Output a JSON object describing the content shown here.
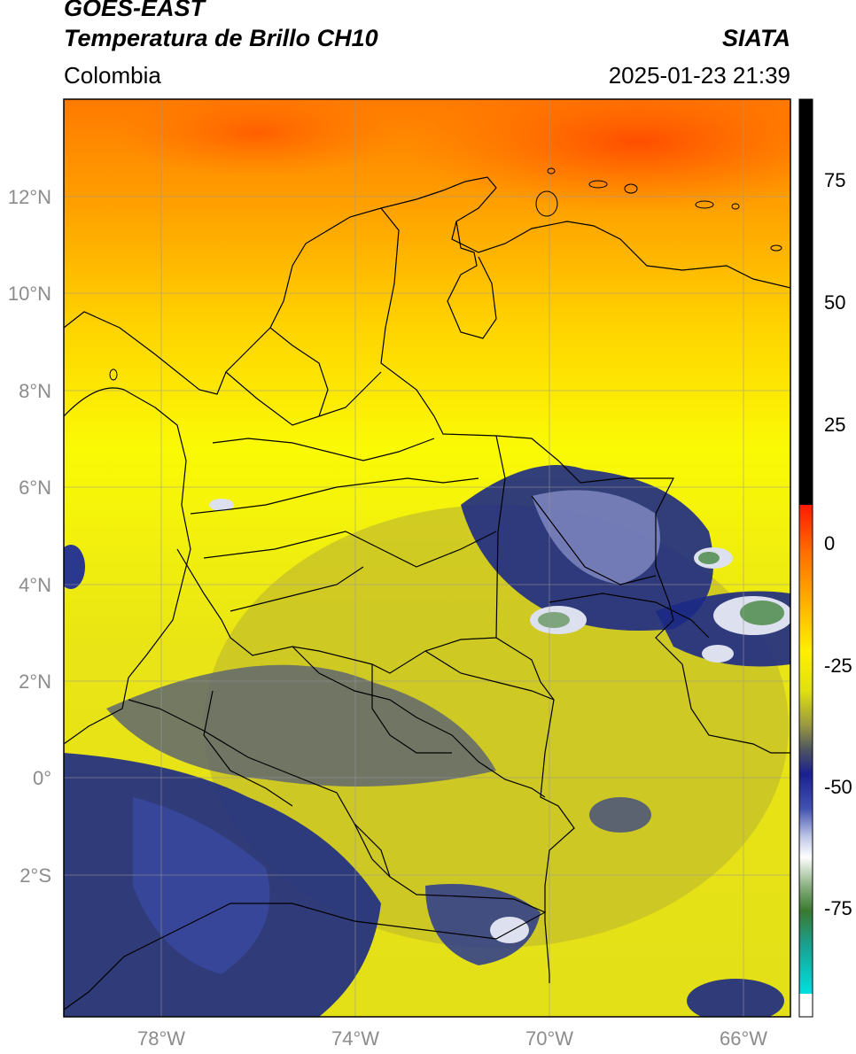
{
  "header": {
    "satellite": "GOES-EAST",
    "product": "Temperatura de Brillo CH10",
    "agency": "SIATA",
    "region": "Colombia",
    "datetime": "2025-01-23 21:39"
  },
  "map": {
    "lon_range": [
      -80,
      -65
    ],
    "lat_range": [
      -5,
      14
    ],
    "lat_labels": [
      "12°N",
      "10°N",
      "8°N",
      "6°N",
      "4°N",
      "2°N",
      "0°",
      "2°S"
    ],
    "lon_labels": [
      "78°W",
      "74°W",
      "70°W",
      "66°W"
    ],
    "colorbar_ticks": [
      "75",
      "50",
      "25",
      "0",
      "-25",
      "-50",
      "-75"
    ],
    "colors": {
      "warm": "#ff6a00",
      "moderate": "#ffb000",
      "mild": "#f5ec10",
      "cool": "#b8b42a",
      "cold_grey": "#5f6670",
      "cold_blue": "#1c2a85",
      "very_cold": "#e8eaf4",
      "coldest": "#4d8a4a",
      "land_border": "#000000"
    }
  }
}
